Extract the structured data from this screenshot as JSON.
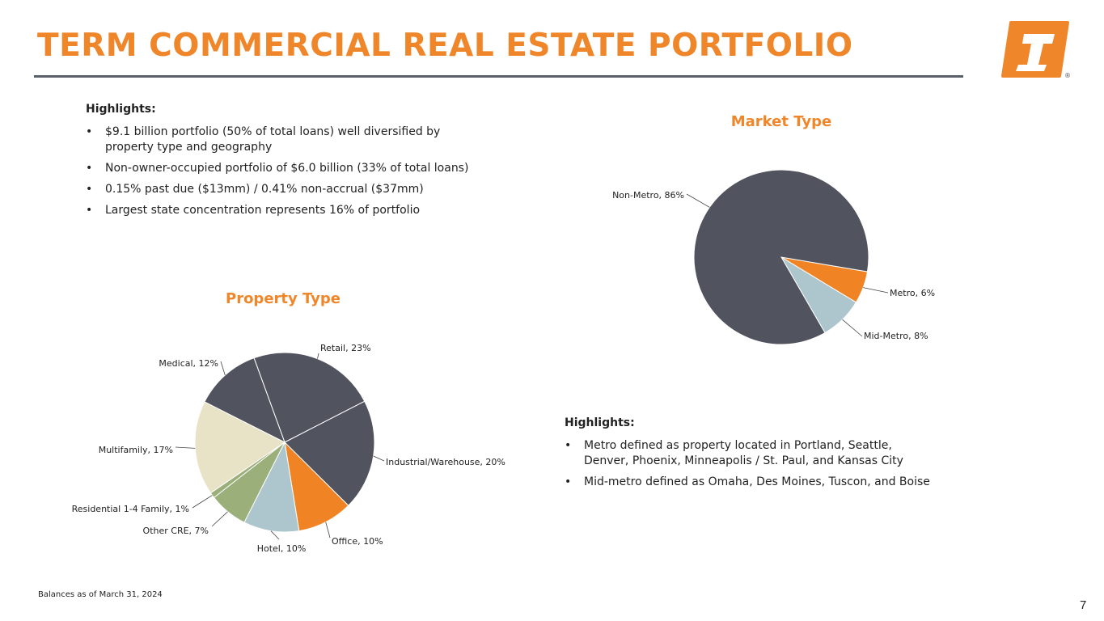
{
  "header": {
    "title": "TERM COMMERCIAL REAL ESTATE PORTFOLIO",
    "logo_mark": "®"
  },
  "highlights_top": {
    "title": "Highlights:",
    "items": [
      "$9.1 billion portfolio (50% of total loans) well diversified by property type and geography",
      "Non-owner-occupied portfolio of $6.0 billion (33% of total loans)",
      "0.15% past due ($13mm) / 0.41% non-accrual ($37mm)",
      "Largest state concentration represents 16% of portfolio"
    ]
  },
  "highlights_bottom": {
    "title": "Highlights:",
    "items": [
      "Metro defined as property located in Portland, Seattle, Denver, Phoenix, Minneapolis / St. Paul, and Kansas City",
      "Mid-metro defined as Omaha, Des Moines, Tuscon, and Boise"
    ]
  },
  "chart_data": [
    {
      "type": "pie",
      "title": "Property Type",
      "slices": [
        {
          "label": "Retail",
          "value": 23,
          "display": "Retail, 23%",
          "color": "#51545E"
        },
        {
          "label": "Industrial/Warehouse",
          "value": 20,
          "display": "Industrial/Warehouse, 20%",
          "color": "#51545E"
        },
        {
          "label": "Office",
          "value": 10,
          "display": "Office, 10%",
          "color": "#F08424"
        },
        {
          "label": "Hotel",
          "value": 10,
          "display": "Hotel, 10%",
          "color": "#ADC5CC"
        },
        {
          "label": "Other CRE",
          "value": 7,
          "display": "Other CRE, 7%",
          "color": "#9BAF7B"
        },
        {
          "label": "Residential 1-4 Family",
          "value": 1,
          "display": "Residential 1-4 Family, 1%",
          "color": "#9BAF7B"
        },
        {
          "label": "Multifamily",
          "value": 17,
          "display": "Multifamily, 17%",
          "color": "#E8E2C6"
        },
        {
          "label": "Medical",
          "value": 12,
          "display": "Medical, 12%",
          "color": "#51545E"
        }
      ]
    },
    {
      "type": "pie",
      "title": "Market Type",
      "slices": [
        {
          "label": "Metro",
          "value": 6,
          "display": "Metro, 6%",
          "color": "#F08424"
        },
        {
          "label": "Mid-Metro",
          "value": 8,
          "display": "Mid-Metro, 8%",
          "color": "#ADC5CC"
        },
        {
          "label": "Non-Metro",
          "value": 86,
          "display": "Non-Metro, 86%",
          "color": "#51545E"
        }
      ]
    }
  ],
  "footer": {
    "note": "Balances as of March 31, 2024",
    "page_number": "7"
  }
}
